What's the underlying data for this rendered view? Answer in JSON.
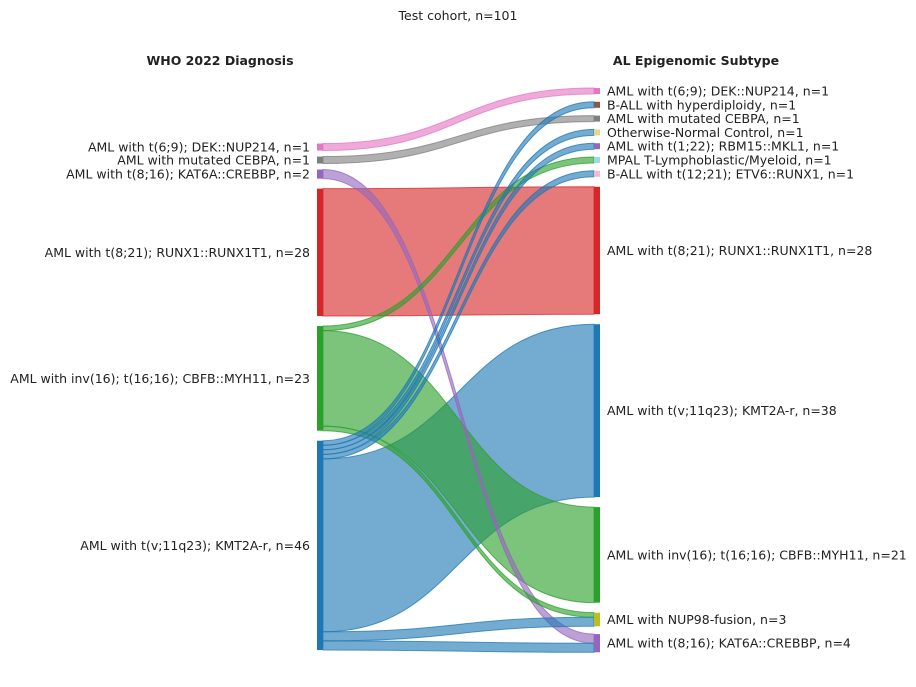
{
  "chart_data": {
    "type": "sankey",
    "title": "Test cohort, n=101",
    "left_header": "WHO 2022 Diagnosis",
    "right_header": "AL Epigenomic Subtype",
    "left_nodes": [
      {
        "id": "L_NUP214",
        "label": "AML with t(6;9); DEK::NUP214, n=1",
        "value": 1,
        "color": "#e377c2"
      },
      {
        "id": "L_CEBPA",
        "label": "AML with mutated CEBPA, n=1",
        "value": 1,
        "color": "#7f7f7f"
      },
      {
        "id": "L_KAT6A",
        "label": "AML with t(8;16); KAT6A::CREBBP, n=2",
        "value": 2,
        "color": "#9467bd"
      },
      {
        "id": "L_RUNX1",
        "label": "AML with t(8;21); RUNX1::RUNX1T1, n=28",
        "value": 28,
        "color": "#d62728"
      },
      {
        "id": "L_CBFB",
        "label": "AML with inv(16); t(16;16); CBFB::MYH11, n=23",
        "value": 23,
        "color": "#2ca02c"
      },
      {
        "id": "L_KMT2A",
        "label": "AML with t(v;11q23); KMT2A-r, n=46",
        "value": 46,
        "color": "#1f77b4"
      }
    ],
    "right_nodes": [
      {
        "id": "R_NUP214",
        "label": "AML with t(6;9); DEK::NUP214, n=1",
        "value": 1,
        "color": "#e377c2"
      },
      {
        "id": "R_HYPER",
        "label": "B-ALL with hyperdiploidy, n=1",
        "value": 1,
        "color": "#8c564b"
      },
      {
        "id": "R_CEBPA",
        "label": "AML with mutated CEBPA, n=1",
        "value": 1,
        "color": "#7f7f7f"
      },
      {
        "id": "R_ONC",
        "label": "Otherwise-Normal Control, n=1",
        "value": 1,
        "color": "#dbdb8d"
      },
      {
        "id": "R_RBM15",
        "label": "AML with t(1;22); RBM15::MKL1, n=1",
        "value": 1,
        "color": "#9467bd"
      },
      {
        "id": "R_MPAL",
        "label": "MPAL T-Lymphoblastic/Myeloid, n=1",
        "value": 1,
        "color": "#9edae5"
      },
      {
        "id": "R_ETV6",
        "label": "B-ALL with t(12;21); ETV6::RUNX1, n=1",
        "value": 1,
        "color": "#f7b6d2"
      },
      {
        "id": "R_RUNX1",
        "label": "AML with t(8;21); RUNX1::RUNX1T1, n=28",
        "value": 28,
        "color": "#d62728"
      },
      {
        "id": "R_KMT2A",
        "label": "AML with t(v;11q23); KMT2A-r, n=38",
        "value": 38,
        "color": "#1f77b4"
      },
      {
        "id": "R_CBFB",
        "label": "AML with inv(16); t(16;16); CBFB::MYH11, n=21",
        "value": 21,
        "color": "#2ca02c"
      },
      {
        "id": "R_NUP98",
        "label": "AML with NUP98-fusion, n=3",
        "value": 3,
        "color": "#bcbd22"
      },
      {
        "id": "R_KAT6A",
        "label": "AML with t(8;16); KAT6A::CREBBP, n=4",
        "value": 4,
        "color": "#9467bd"
      }
    ],
    "links": [
      {
        "source": "L_NUP214",
        "target": "R_NUP214",
        "value": 1
      },
      {
        "source": "L_CEBPA",
        "target": "R_CEBPA",
        "value": 1
      },
      {
        "source": "L_KAT6A",
        "target": "R_KAT6A",
        "value": 2
      },
      {
        "source": "L_RUNX1",
        "target": "R_RUNX1",
        "value": 28
      },
      {
        "source": "L_CBFB",
        "target": "R_MPAL",
        "value": 1
      },
      {
        "source": "L_CBFB",
        "target": "R_CBFB",
        "value": 21
      },
      {
        "source": "L_CBFB",
        "target": "R_NUP98",
        "value": 1
      },
      {
        "source": "L_KMT2A",
        "target": "R_HYPER",
        "value": 1
      },
      {
        "source": "L_KMT2A",
        "target": "R_ONC",
        "value": 1
      },
      {
        "source": "L_KMT2A",
        "target": "R_RBM15",
        "value": 1
      },
      {
        "source": "L_KMT2A",
        "target": "R_ETV6",
        "value": 1
      },
      {
        "source": "L_KMT2A",
        "target": "R_KMT2A",
        "value": 38
      },
      {
        "source": "L_KMT2A",
        "target": "R_NUP98",
        "value": 2
      },
      {
        "source": "L_KMT2A",
        "target": "R_KAT6A",
        "value": 2
      }
    ]
  }
}
